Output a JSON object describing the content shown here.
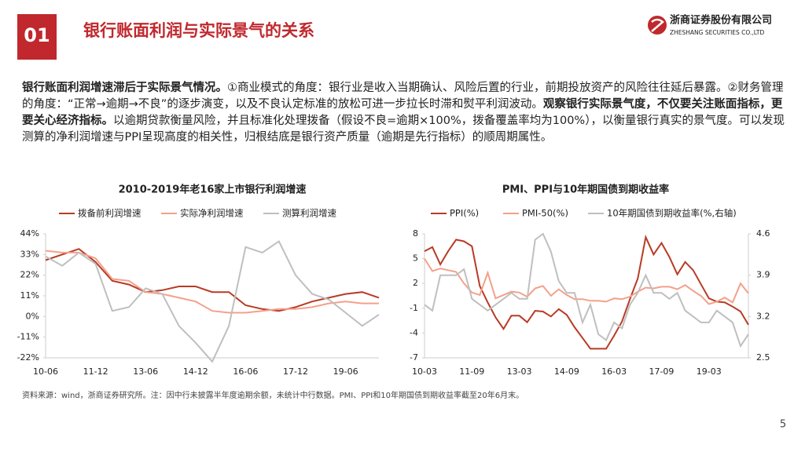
{
  "header": {
    "number": "01",
    "title": "银行账面利润与实际景气的关系",
    "company": "浙商证券股份有限公司",
    "company_en": "ZHESHANG SECURITIES CO.,LTD"
  },
  "paragraph": [
    {
      "text": "银行账面利润增速滞后于实际景气情况。",
      "bold": true
    },
    {
      "text": "①商业模式的角度：银行业是收入当期确认、风险后置的行业，前期投放资产的风险往往延后暴露。②财务管理的角度：“正常→逾期→不良”的逐步演变，以及不良认定标准的放松可进一步拉长时滞和熨平利润波动。",
      "bold": false
    },
    {
      "text": "观察银行实际景气度，不仅要关注账面指标，更要关心经济指标。",
      "bold": true
    },
    {
      "text": "以逾期贷款衡量风险，并且标准化处理拨备（假设不良=逾期×100%，拨备覆盖率均为100%），以衡量银行真实的景气度。可以发现测算的净利润增速与PPI呈现高度的相关性，归根结底是银行资产质量（逾期是先行指标）的顺周期属性。",
      "bold": false
    }
  ],
  "chart_data": [
    {
      "type": "line",
      "title": "2010-2019年老16家上市银行利润增速",
      "categories": [
        "10-06",
        null,
        null,
        "11-12",
        null,
        null,
        "13-06",
        null,
        null,
        "14-12",
        null,
        null,
        "16-06",
        null,
        null,
        "17-12",
        null,
        null,
        "19-06",
        null,
        null
      ],
      "series": [
        {
          "name": "拨备前利润增速",
          "color": "#b83b25",
          "values": [
            30,
            33,
            36,
            29,
            19,
            17,
            13,
            14,
            16,
            16,
            13,
            13,
            6,
            4,
            3,
            5,
            8,
            10,
            12,
            13,
            10
          ]
        },
        {
          "name": "实际净利润增速",
          "color": "#f4a08a",
          "values": [
            35,
            34,
            34,
            31,
            20,
            19,
            13,
            12,
            10,
            8,
            3,
            2,
            2,
            3,
            4,
            4,
            5,
            7,
            8,
            7,
            7
          ]
        },
        {
          "name": "测算利润增速",
          "color": "#bfbfbf",
          "values": [
            32,
            27,
            34,
            28,
            3,
            5,
            15,
            12,
            -5,
            -14,
            -24,
            -5,
            37,
            34,
            40,
            22,
            12,
            9,
            2,
            -5,
            1
          ]
        }
      ],
      "ylim": [
        -22,
        44
      ],
      "yticks": [
        {
          "value": -22,
          "label": "-22%"
        },
        {
          "value": -11,
          "label": "-11%"
        },
        {
          "value": 0,
          "label": "0%"
        },
        {
          "value": 11,
          "label": "11%"
        },
        {
          "value": 22,
          "label": "22%"
        },
        {
          "value": 33,
          "label": "33%"
        },
        {
          "value": 44,
          "label": "44%"
        }
      ]
    },
    {
      "type": "line",
      "title": "PMI、PPI与10年期国债到期收益率",
      "categories": [
        "10-03",
        null,
        null,
        null,
        null,
        null,
        "11-09",
        null,
        null,
        null,
        null,
        null,
        "13-03",
        null,
        null,
        null,
        null,
        null,
        "14-09",
        null,
        null,
        null,
        null,
        null,
        "16-03",
        null,
        null,
        null,
        null,
        null,
        "17-09",
        null,
        null,
        null,
        null,
        null,
        "19-03",
        null,
        null,
        null,
        null,
        null
      ],
      "series": [
        {
          "name": "PPI(%)",
          "color": "#b83b25",
          "values": [
            5.9,
            6.4,
            4.3,
            5.9,
            7.3,
            7.1,
            6.5,
            1.7,
            -0.3,
            -2.1,
            -3.5,
            -1.9,
            -1.9,
            -2.7,
            -1.3,
            -1.4,
            -2.0,
            -1.1,
            -1.8,
            -3.3,
            -4.6,
            -5.9,
            -5.9,
            -5.9,
            -4.3,
            -2.6,
            0.1,
            2.6,
            7.6,
            5.5,
            6.9,
            5.2,
            3.1,
            4.6,
            3.6,
            1.9,
            0.2,
            -0.2,
            -0.3,
            -0.8,
            -1.4,
            -3.0
          ]
        },
        {
          "name": "PMI-50(%)",
          "color": "#f4a08a",
          "values": [
            5.0,
            3.5,
            3.8,
            3.6,
            3.4,
            2.0,
            0.9,
            0.6,
            3.3,
            0.2,
            0.6,
            1.0,
            0.9,
            0.4,
            1.4,
            1.7,
            0.5,
            1.3,
            0.6,
            0.1,
            0.1,
            -0.1,
            -0.1,
            -0.2,
            0.2,
            0.1,
            0.4,
            1.0,
            1.5,
            1.4,
            1.6,
            1.6,
            1.3,
            1.8,
            1.1,
            0.5,
            -0.5,
            -0.2,
            0.3,
            -0.3,
            2.0,
            0.8
          ]
        },
        {
          "name": "10年期国债到期收益率(%,右轴)",
          "color": "#bfbfbf",
          "axis": "y2",
          "values": [
            3.4,
            3.3,
            3.9,
            3.9,
            3.9,
            4.0,
            3.5,
            3.4,
            3.3,
            3.4,
            3.5,
            3.6,
            3.5,
            3.5,
            4.5,
            4.6,
            4.3,
            3.8,
            3.6,
            3.6,
            3.1,
            3.4,
            2.9,
            2.8,
            3.1,
            3.0,
            3.4,
            3.6,
            3.9,
            3.6,
            3.6,
            3.5,
            3.6,
            3.3,
            3.2,
            3.1,
            3.1,
            3.3,
            3.2,
            3.1,
            2.7,
            2.9
          ]
        }
      ],
      "ylim": [
        -7,
        8
      ],
      "yticks": [
        -7,
        -4,
        -1,
        2,
        5,
        8
      ],
      "y2lim": [
        2.5,
        4.6
      ],
      "y2ticks": [
        2.5,
        3.2,
        3.9,
        4.6
      ]
    }
  ],
  "footnote": "资料来源：wind，浙商证券研究所。注：因中行未披露半年度逾期余额，未统计中行数据。PMI、PPI和10年期国债到期收益率截至20年6月末。",
  "page_number": "5"
}
